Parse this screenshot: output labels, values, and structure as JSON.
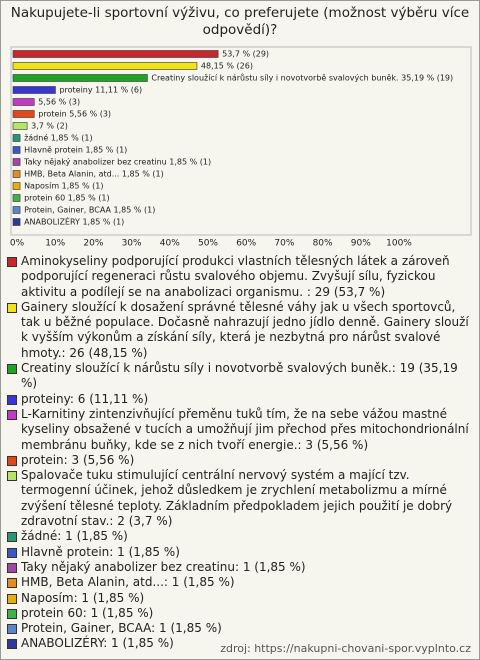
{
  "chart_data": {
    "type": "bar",
    "title": "Nakupujete-li sportovní výživu, co preferujete (možnost výběru více odpovědí)?",
    "categories": [
      "Aminokyseliny podporující produkci vlastních tělesných látek a zároveň podporující regeneraci růstu svalového objemu. Zvyšují sílu, fyzickou aktivitu a podílejí se na anabolizaci organismu. : 29 (53,7 %)",
      "Gainery sloužící k dosažení správné tělesné váhy jak u všech sportovců, tak u běžné populace. Dočasně nahrazují jedno jídlo denně. Gainery slouží k vyšším výkonům a získání síly, která je nezbytná pro nárůst svalové hmoty.: 26 (48,15 %)",
      "Creatiny sloužící k nárůstu síly i novotvorbě svalových buněk.: 19 (35,19 %)",
      "proteiny: 6 (11,11 %)",
      "L-Karnitiny zintenzivňující přeměnu tuků tím, že na sebe vážou mastné kyseliny obsažené v tucích a umožňují jim přechod přes mitochondrionální membránu buňky, kde se z nich tvoří energie.: 3 (5,56 %)",
      "protein: 3 (5,56 %)",
      "Spalovače tuku stimulující centrální nervový systém a mající tzv. termogenní účinek, jehož důsledkem je zrychlení metabolizmu a mírné zvýšení tělesné teploty. Základním předpokladem jejich použití je dobrý zdravotní stav.: 2 (3,7 %)",
      "žádné: 1 (1,85 %)",
      "Hlavně protein: 1 (1,85 %)",
      "Taky nějaký anabolizer bez creatinu: 1 (1,85 %)",
      "HMB, Beta Alanin, atd...: 1 (1,85 %)",
      "Naposím: 1 (1,85 %)",
      "protein 60: 1 (1,85 %)",
      "Protein, Gainer, BCAA: 1 (1,85 %)",
      "ANABOLIZÉRY: 1 (1,85 %)"
    ],
    "values": [
      53.7,
      48.15,
      35.19,
      11.11,
      5.56,
      5.56,
      3.7,
      1.85,
      1.85,
      1.85,
      1.85,
      1.85,
      1.85,
      1.85,
      1.85
    ],
    "value_labels": [
      "53,7 % (29)",
      "48,15 % (26)",
      "Creatiny sloužící k nárůstu síly i novotvorbě svalových buněk. 35,19 % (19)",
      "proteiny 11,11 % (6)",
      "5,56 % (3)",
      "protein 5,56 % (3)",
      "3,7 % (2)",
      "žádné 1,85 % (1)",
      "Hlavně protein 1,85 % (1)",
      "Taky nějaký anabolizer bez creatinu 1,85 % (1)",
      "HMB, Beta Alanin, atd... 1,85 % (1)",
      "Naposím 1,85 % (1)",
      "protein 60 1,85 % (1)",
      "Protein, Gainer, BCAA 1,85 % (1)",
      "ANABOLIZÉRY 1,85 % (1)"
    ],
    "colors": [
      "#c8262c",
      "#f2e21a",
      "#1fa323",
      "#3838d0",
      "#c03cc4",
      "#e2461c",
      "#b6e466",
      "#2a9474",
      "#3a58c6",
      "#a046a8",
      "#e68a26",
      "#e6ac12",
      "#3eb446",
      "#5a86c8",
      "#2e3a98"
    ],
    "xlim": [
      0,
      100
    ],
    "xticks": [
      {
        "value": 0,
        "label": "0%"
      },
      {
        "value": 10,
        "label": "10%"
      },
      {
        "value": 20,
        "label": "20%"
      },
      {
        "value": 30,
        "label": "30%"
      },
      {
        "value": 40,
        "label": "40%"
      },
      {
        "value": 50,
        "label": "50%"
      },
      {
        "value": 60,
        "label": "60%"
      },
      {
        "value": 70,
        "label": "70%"
      },
      {
        "value": 80,
        "label": "80%"
      },
      {
        "value": 90,
        "label": "90%"
      },
      {
        "value": 100,
        "label": "100%"
      }
    ],
    "source": "zdroj: https://nakupni-chovani-spor.vyplnto.cz"
  }
}
